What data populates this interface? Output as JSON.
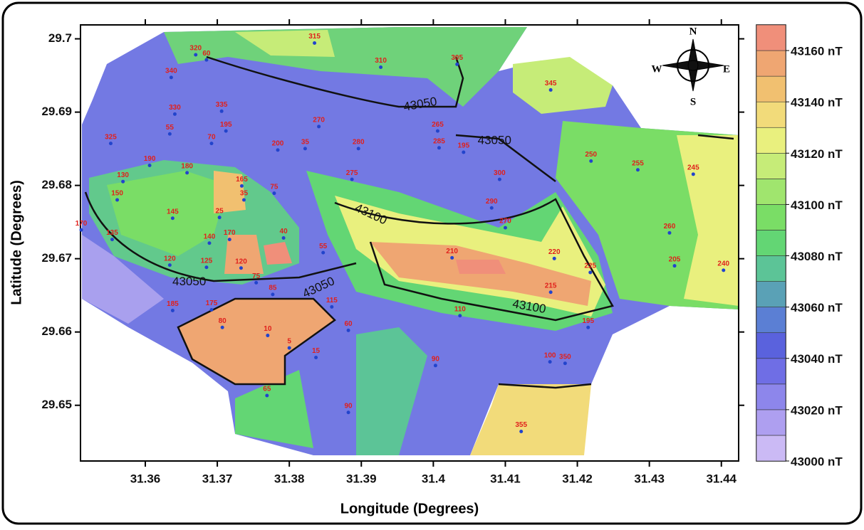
{
  "chart_data": {
    "type": "contour",
    "xlabel": "Longitude (Degrees)",
    "ylabel": "Latitude (Degrees)",
    "xlim": [
      31.351,
      31.4424
    ],
    "ylim": [
      29.6424,
      29.7019
    ],
    "xticks": [
      31.36,
      31.37,
      31.38,
      31.39,
      31.4,
      31.41,
      31.42,
      31.43,
      31.44
    ],
    "yticks": [
      29.65,
      29.66,
      29.67,
      29.68,
      29.69,
      29.7
    ],
    "colorbar": {
      "lim": [
        43000,
        43170
      ],
      "step": 10,
      "colors": [
        "#cbbaf5",
        "#ae9ff0",
        "#8d86eb",
        "#6f6ee5",
        "#5a62dd",
        "#5b7fd4",
        "#5aa1b6",
        "#5cc497",
        "#63d674",
        "#7add66",
        "#a0e56e",
        "#c6ec78",
        "#e9f07e",
        "#f2db7a",
        "#f1c070",
        "#efa672",
        "#f08f7a"
      ],
      "ticks": [
        {
          "value": 43000,
          "label": "43000 nT"
        },
        {
          "value": 43020,
          "label": "43020 nT"
        },
        {
          "value": 43040,
          "label": "43040 nT"
        },
        {
          "value": 43060,
          "label": "43060 nT"
        },
        {
          "value": 43080,
          "label": "43080 nT"
        },
        {
          "value": 43100,
          "label": "43100 nT"
        },
        {
          "value": 43120,
          "label": "43120 nT"
        },
        {
          "value": 43140,
          "label": "43140 nT"
        },
        {
          "value": 43160,
          "label": "43160 nT"
        }
      ]
    },
    "contour_labels": [
      {
        "value": 43050,
        "x": 31.3982,
        "y": 29.691
      },
      {
        "value": 43050,
        "x": 31.4085,
        "y": 29.6861
      },
      {
        "value": 43100,
        "x": 31.3913,
        "y": 29.676
      },
      {
        "value": 43050,
        "x": 31.3661,
        "y": 29.6668
      },
      {
        "value": 43050,
        "x": 31.3841,
        "y": 29.666
      },
      {
        "value": 43100,
        "x": 31.4133,
        "y": 29.6634
      }
    ],
    "compass": [
      "N",
      "E",
      "S",
      "W"
    ],
    "stations": [
      {
        "id": 315,
        "x": 31.3835,
        "y": 29.7003
      },
      {
        "id": 320,
        "x": 31.367,
        "y": 29.6987
      },
      {
        "id": 60,
        "x": 31.3685,
        "y": 29.698
      },
      {
        "id": 340,
        "x": 31.3636,
        "y": 29.6956
      },
      {
        "id": 310,
        "x": 31.3927,
        "y": 29.697
      },
      {
        "id": 305,
        "x": 31.4033,
        "y": 29.6974
      },
      {
        "id": 345,
        "x": 31.4163,
        "y": 29.6939
      },
      {
        "id": 330,
        "x": 31.3641,
        "y": 29.6906
      },
      {
        "id": 335,
        "x": 31.3706,
        "y": 29.691
      },
      {
        "id": 195,
        "x": 31.3712,
        "y": 29.6883
      },
      {
        "id": 55,
        "x": 31.3634,
        "y": 29.6879
      },
      {
        "id": 70,
        "x": 31.3692,
        "y": 29.6866
      },
      {
        "id": 325,
        "x": 31.3552,
        "y": 29.6866
      },
      {
        "id": 270,
        "x": 31.3841,
        "y": 29.6889
      },
      {
        "id": 265,
        "x": 31.4006,
        "y": 29.6883
      },
      {
        "id": 200,
        "x": 31.3784,
        "y": 29.6857
      },
      {
        "id": 35,
        "x": 31.3822,
        "y": 29.6859
      },
      {
        "id": 280,
        "x": 31.3896,
        "y": 29.6859
      },
      {
        "id": 285,
        "x": 31.4008,
        "y": 29.686
      },
      {
        "id": 195,
        "x": 31.4042,
        "y": 29.6854
      },
      {
        "id": 250,
        "x": 31.4219,
        "y": 29.6842
      },
      {
        "id": 255,
        "x": 31.4284,
        "y": 29.683
      },
      {
        "id": 245,
        "x": 31.4361,
        "y": 29.6824
      },
      {
        "id": 190,
        "x": 31.3606,
        "y": 29.6836
      },
      {
        "id": 180,
        "x": 31.3658,
        "y": 29.6826
      },
      {
        "id": 130,
        "x": 31.3569,
        "y": 29.6814
      },
      {
        "id": 165,
        "x": 31.3734,
        "y": 29.6808
      },
      {
        "id": 275,
        "x": 31.3887,
        "y": 29.6817
      },
      {
        "id": 300,
        "x": 31.4092,
        "y": 29.6817
      },
      {
        "id": 75,
        "x": 31.3779,
        "y": 29.6798
      },
      {
        "id": 150,
        "x": 31.3561,
        "y": 29.6789
      },
      {
        "id": 35,
        "x": 31.3737,
        "y": 29.6789
      },
      {
        "id": 145,
        "x": 31.3638,
        "y": 29.6764
      },
      {
        "id": 25,
        "x": 31.3703,
        "y": 29.6765
      },
      {
        "id": 290,
        "x": 31.4081,
        "y": 29.6778
      },
      {
        "id": 170,
        "x": 31.3511,
        "y": 29.6748
      },
      {
        "id": 270,
        "x": 31.41,
        "y": 29.6751
      },
      {
        "id": 135,
        "x": 31.3554,
        "y": 29.6735
      },
      {
        "id": 140,
        "x": 31.3689,
        "y": 29.673
      },
      {
        "id": 170,
        "x": 31.3717,
        "y": 29.6735
      },
      {
        "id": 40,
        "x": 31.3792,
        "y": 29.6737
      },
      {
        "id": 260,
        "x": 31.4328,
        "y": 29.6744
      },
      {
        "id": 55,
        "x": 31.3847,
        "y": 29.6717
      },
      {
        "id": 210,
        "x": 31.4026,
        "y": 29.671
      },
      {
        "id": 220,
        "x": 31.4168,
        "y": 29.6709
      },
      {
        "id": 120,
        "x": 31.3634,
        "y": 29.67
      },
      {
        "id": 125,
        "x": 31.3685,
        "y": 29.6697
      },
      {
        "id": 120,
        "x": 31.3733,
        "y": 29.6696
      },
      {
        "id": 205,
        "x": 31.4335,
        "y": 29.6699
      },
      {
        "id": 240,
        "x": 31.4403,
        "y": 29.6693
      },
      {
        "id": 225,
        "x": 31.4218,
        "y": 29.669
      },
      {
        "id": 75,
        "x": 31.3754,
        "y": 29.6676
      },
      {
        "id": 85,
        "x": 31.3777,
        "y": 29.666
      },
      {
        "id": 215,
        "x": 31.4163,
        "y": 29.6663
      },
      {
        "id": 185,
        "x": 31.3638,
        "y": 29.6638
      },
      {
        "id": 175,
        "x": 31.3692,
        "y": 29.6639
      },
      {
        "id": 115,
        "x": 31.3859,
        "y": 29.6643
      },
      {
        "id": 110,
        "x": 31.4037,
        "y": 29.6631
      },
      {
        "id": 195,
        "x": 31.4215,
        "y": 29.6615
      },
      {
        "id": 80,
        "x": 31.3707,
        "y": 29.6615
      },
      {
        "id": 10,
        "x": 31.377,
        "y": 29.6604
      },
      {
        "id": 60,
        "x": 31.3882,
        "y": 29.6611
      },
      {
        "id": 5,
        "x": 31.38,
        "y": 29.6587
      },
      {
        "id": 15,
        "x": 31.3837,
        "y": 29.6574
      },
      {
        "id": 100,
        "x": 31.4162,
        "y": 29.6568
      },
      {
        "id": 350,
        "x": 31.4183,
        "y": 29.6566
      },
      {
        "id": 90,
        "x": 31.4003,
        "y": 29.6563
      },
      {
        "id": 65,
        "x": 31.3769,
        "y": 29.6522
      },
      {
        "id": 90,
        "x": 31.3882,
        "y": 29.6499
      },
      {
        "id": 355,
        "x": 31.4122,
        "y": 29.6473
      }
    ]
  }
}
